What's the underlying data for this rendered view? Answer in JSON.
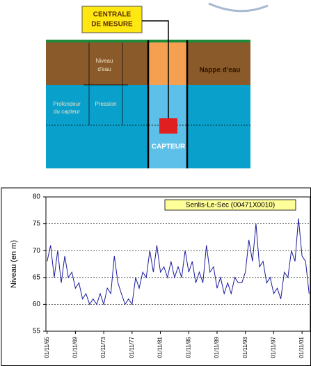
{
  "diagram": {
    "centrale": [
      "CENTRALE",
      "DE MESURE"
    ],
    "niveau": [
      "Niveau",
      "d'eau"
    ],
    "nappe": "Nappe d'eau",
    "profondeur": [
      "Profondeur",
      "du capteur"
    ],
    "pression": "Pression",
    "capteur": "CAPTEUR"
  },
  "chart_data": {
    "type": "line",
    "y_label": "Niveau (en m)",
    "x": [
      "1965-11-01",
      "1966-05-01",
      "1966-11-01",
      "1967-05-01",
      "1967-11-01",
      "1968-05-01",
      "1968-11-01",
      "1969-05-01",
      "1969-11-01",
      "1970-05-01",
      "1970-11-01",
      "1971-05-01",
      "1971-11-01",
      "1972-05-01",
      "1972-11-01",
      "1973-05-01",
      "1973-11-01",
      "1974-05-01",
      "1974-11-01",
      "1975-05-01",
      "1975-11-01",
      "1976-05-01",
      "1976-11-01",
      "1977-05-01",
      "1977-11-01",
      "1978-05-01",
      "1978-11-01",
      "1979-05-01",
      "1979-11-01",
      "1980-05-01",
      "1980-11-01",
      "1981-05-01",
      "1981-11-01",
      "1982-05-01",
      "1982-11-01",
      "1983-05-01",
      "1983-11-01",
      "1984-05-01",
      "1984-11-01",
      "1985-05-01",
      "1985-11-01",
      "1986-05-01",
      "1986-11-01",
      "1987-05-01",
      "1987-11-01",
      "1988-05-01",
      "1988-11-01",
      "1989-05-01",
      "1989-11-01",
      "1990-05-01",
      "1990-11-01",
      "1991-05-01",
      "1991-11-01",
      "1992-05-01",
      "1992-11-01",
      "1993-05-01",
      "1993-11-01",
      "1994-05-01",
      "1994-11-01",
      "1995-05-01",
      "1995-11-01",
      "1996-05-01",
      "1996-11-01",
      "1997-05-01",
      "1997-11-01",
      "1998-05-01",
      "1998-11-01",
      "1999-05-01",
      "1999-11-01",
      "2000-05-01",
      "2000-11-01",
      "2001-05-01",
      "2001-11-01",
      "2002-05-01",
      "2002-11-01"
    ],
    "series": [
      {
        "name": "Senlis-Le-Sec (00471X0010)",
        "color": "#1a1a9c",
        "values": [
          68,
          71,
          65,
          70,
          64,
          69,
          65,
          66,
          63,
          64,
          61,
          62,
          60,
          61,
          60,
          62,
          60,
          63,
          62,
          69,
          64,
          62,
          60,
          61,
          60,
          65,
          63,
          66,
          65,
          70,
          66,
          71,
          66,
          67,
          65,
          68,
          65,
          67,
          65,
          70,
          66,
          68,
          64,
          66,
          64,
          71,
          66,
          67,
          63,
          65,
          62,
          64,
          62,
          65,
          64,
          64,
          66,
          72,
          68,
          75,
          67,
          68,
          64,
          65,
          62,
          63,
          61,
          66,
          65,
          70,
          68,
          76,
          69,
          68,
          62
        ]
      }
    ],
    "xlim": [
      "1965-09-01",
      "2003-01-01"
    ],
    "xticks": [
      {
        "value": "1965-11-01",
        "label": "01/11/65"
      },
      {
        "value": "1969-11-01",
        "label": "01/11/69"
      },
      {
        "value": "1973-11-01",
        "label": "01/11/73"
      },
      {
        "value": "1977-11-01",
        "label": "01/11/77"
      },
      {
        "value": "1981-11-01",
        "label": "01/11/81"
      },
      {
        "value": "1985-11-01",
        "label": "01/11/85"
      },
      {
        "value": "1989-11-01",
        "label": "01/11/89"
      },
      {
        "value": "1993-11-01",
        "label": "01/11/93"
      },
      {
        "value": "1997-11-01",
        "label": "01/11/97"
      },
      {
        "value": "2001-11-01",
        "label": "01/11/01"
      }
    ],
    "ylim": [
      55,
      80
    ],
    "yticks": [
      55,
      60,
      65,
      70,
      75,
      80
    ],
    "grid": true
  }
}
